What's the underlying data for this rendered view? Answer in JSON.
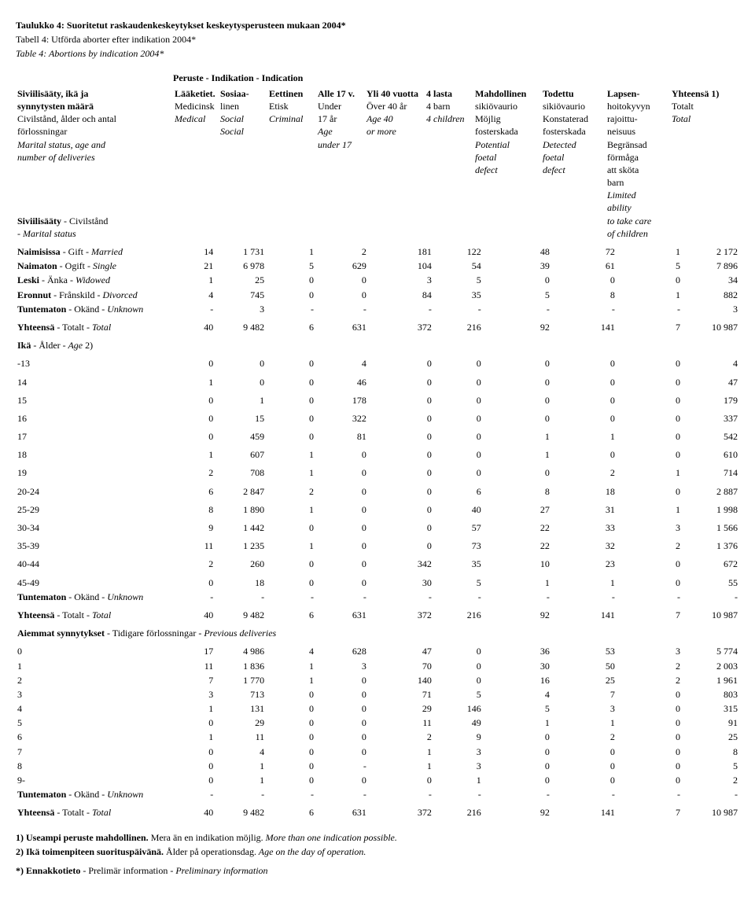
{
  "titles": {
    "fi": "Taulukko 4: Suoritetut raskaudenkeskeytykset keskeytysperusteen mukaan 2004*",
    "sv": "Tabell 4: Utförda aborter efter indikation 2004*",
    "en": "Table 4: Abortions by indication 2004*"
  },
  "indication_header": "Peruste - Indikation - Indication",
  "row_label_header": {
    "lines": [
      {
        "fi": "Siviilisääty, ikä ja",
        "sv": "",
        "en": ""
      },
      {
        "fi": "synnytysten määrä",
        "sv": "",
        "en": ""
      },
      {
        "fi": "",
        "sv": "Civilstånd, ålder och antal",
        "en": ""
      },
      {
        "fi": "",
        "sv": "förlossningar",
        "en": ""
      },
      {
        "fi": "",
        "sv": "",
        "en": "Marital status, age and"
      },
      {
        "fi": "",
        "sv": "",
        "en": "number of deliveries"
      }
    ],
    "sub": [
      {
        "fi": "Siviilisääty ",
        "sv": "- Civilstånd",
        "en": ""
      },
      {
        "fi": "",
        "sv": "",
        "en": "- Marital status"
      }
    ]
  },
  "col_headers": [
    [
      "Lääketiet.",
      "Medicinsk",
      "Medical",
      "",
      "",
      "",
      "",
      "",
      "",
      "",
      "",
      ""
    ],
    [
      "Sosiaa-",
      "linen",
      "Social",
      "Social",
      "",
      "",
      "",
      "",
      "",
      "",
      "",
      ""
    ],
    [
      "Eettinen",
      "Etisk",
      "Criminal",
      "",
      "",
      "",
      "",
      "",
      "",
      "",
      "",
      ""
    ],
    [
      "Alle 17 v.",
      "Under",
      "17 år",
      "Age",
      "under 17",
      "",
      "",
      "",
      "",
      "",
      "",
      ""
    ],
    [
      "Yli 40 vuotta",
      "Över 40 år",
      "Age 40",
      "or more",
      "",
      "",
      "",
      "",
      "",
      "",
      "",
      ""
    ],
    [
      "4 lasta",
      "4 barn",
      "4 children",
      "",
      "",
      "",
      "",
      "",
      "",
      "",
      "",
      ""
    ],
    [
      "Mahdollinen",
      "sikiövaurio",
      "Möjlig",
      "fosterskada",
      "Potential",
      "foetal",
      "defect",
      "",
      "",
      "",
      "",
      ""
    ],
    [
      "Todettu",
      "sikiövaurio",
      "Konstaterad",
      "fosterskada",
      "Detected",
      "foetal",
      "defect",
      "",
      "",
      "",
      "",
      ""
    ],
    [
      "Lapsen-",
      "hoitokyvyn",
      "rajoittu-",
      "neisuus",
      "Begränsad",
      "förmåga",
      "att sköta",
      "barn",
      "Limited",
      "ability",
      "to take care",
      "of children"
    ],
    [
      "Yhteensä 1)",
      "Totalt",
      "Total",
      "",
      "",
      "",
      "",
      "",
      "",
      "",
      "",
      ""
    ]
  ],
  "marital_rows": [
    {
      "label_fi": "Naimisissa ",
      "label_sv": "- Gift -",
      "label_en": " Married",
      "vals": [
        "14",
        "1 731",
        "1",
        "2",
        "181",
        "122",
        "48",
        "72",
        "1",
        "2 172"
      ]
    },
    {
      "label_fi": "Naimaton ",
      "label_sv": "- Ogift -",
      "label_en": " Single",
      "vals": [
        "21",
        "6 978",
        "5",
        "629",
        "104",
        "54",
        "39",
        "61",
        "5",
        "7 896"
      ]
    },
    {
      "label_fi": "Leski ",
      "label_sv": "- Änka -",
      "label_en": " Widowed",
      "vals": [
        "1",
        "25",
        "0",
        "0",
        "3",
        "5",
        "0",
        "0",
        "0",
        "34"
      ]
    },
    {
      "label_fi": "Eronnut ",
      "label_sv": "- Frånskild -",
      "label_en": " Divorced",
      "vals": [
        "4",
        "745",
        "0",
        "0",
        "84",
        "35",
        "5",
        "8",
        "1",
        "882"
      ]
    },
    {
      "label_fi": "Tuntematon ",
      "label_sv": "- Okänd -",
      "label_en": " Unknown",
      "vals": [
        "-",
        "3",
        "-",
        "-",
        "-",
        "-",
        "-",
        "-",
        "-",
        "3"
      ]
    }
  ],
  "total_row": {
    "label_fi": "Yhteensä ",
    "label_sv": "- Totalt -",
    "label_en": " Total",
    "vals": [
      "40",
      "9 482",
      "6",
      "631",
      "372",
      "216",
      "92",
      "141",
      "7",
      "10 987"
    ]
  },
  "age_section": {
    "label_fi": "Ikä ",
    "label_sv": "- Ålder -",
    "label_en": " Age",
    "sup": " 2)"
  },
  "age_rows": [
    {
      "label": "-13",
      "vals": [
        "0",
        "0",
        "0",
        "4",
        "0",
        "0",
        "0",
        "0",
        "0",
        "4"
      ]
    },
    {
      "label": "14",
      "vals": [
        "1",
        "0",
        "0",
        "46",
        "0",
        "0",
        "0",
        "0",
        "0",
        "47"
      ]
    },
    {
      "label": "15",
      "vals": [
        "0",
        "1",
        "0",
        "178",
        "0",
        "0",
        "0",
        "0",
        "0",
        "179"
      ]
    },
    {
      "label": "16",
      "vals": [
        "0",
        "15",
        "0",
        "322",
        "0",
        "0",
        "0",
        "0",
        "0",
        "337"
      ]
    },
    {
      "label": "17",
      "vals": [
        "0",
        "459",
        "0",
        "81",
        "0",
        "0",
        "1",
        "1",
        "0",
        "542"
      ]
    },
    {
      "label": "18",
      "vals": [
        "1",
        "607",
        "1",
        "0",
        "0",
        "0",
        "1",
        "0",
        "0",
        "610"
      ]
    },
    {
      "label": "19",
      "vals": [
        "2",
        "708",
        "1",
        "0",
        "0",
        "0",
        "0",
        "2",
        "1",
        "714"
      ]
    },
    {
      "label": "20-24",
      "vals": [
        "6",
        "2 847",
        "2",
        "0",
        "0",
        "6",
        "8",
        "18",
        "0",
        "2 887"
      ]
    },
    {
      "label": "25-29",
      "vals": [
        "8",
        "1 890",
        "1",
        "0",
        "0",
        "40",
        "27",
        "31",
        "1",
        "1 998"
      ]
    },
    {
      "label": "30-34",
      "vals": [
        "9",
        "1 442",
        "0",
        "0",
        "0",
        "57",
        "22",
        "33",
        "3",
        "1 566"
      ]
    },
    {
      "label": "35-39",
      "vals": [
        "11",
        "1 235",
        "1",
        "0",
        "0",
        "73",
        "22",
        "32",
        "2",
        "1 376"
      ]
    },
    {
      "label": "40-44",
      "vals": [
        "2",
        "260",
        "0",
        "0",
        "342",
        "35",
        "10",
        "23",
        "0",
        "672"
      ]
    },
    {
      "label": "45-49",
      "vals": [
        "0",
        "18",
        "0",
        "0",
        "30",
        "5",
        "1",
        "1",
        "0",
        "55"
      ]
    }
  ],
  "unknown_row": {
    "label_fi": "Tuntematon ",
    "label_sv": "- Okänd -",
    "label_en": " Unknown",
    "vals": [
      "-",
      "-",
      "-",
      "-",
      "-",
      "-",
      "-",
      "-",
      "-",
      "-"
    ]
  },
  "prev_section": {
    "label_fi": "Aiemmat synnytykset ",
    "label_sv": "- Tidigare förlossningar -",
    "label_en": " Previous deliveries"
  },
  "prev_rows": [
    {
      "label": "0",
      "vals": [
        "17",
        "4 986",
        "4",
        "628",
        "47",
        "0",
        "36",
        "53",
        "3",
        "5 774"
      ]
    },
    {
      "label": "1",
      "vals": [
        "11",
        "1 836",
        "1",
        "3",
        "70",
        "0",
        "30",
        "50",
        "2",
        "2 003"
      ]
    },
    {
      "label": "2",
      "vals": [
        "7",
        "1 770",
        "1",
        "0",
        "140",
        "0",
        "16",
        "25",
        "2",
        "1 961"
      ]
    },
    {
      "label": "3",
      "vals": [
        "3",
        "713",
        "0",
        "0",
        "71",
        "5",
        "4",
        "7",
        "0",
        "803"
      ]
    },
    {
      "label": "4",
      "vals": [
        "1",
        "131",
        "0",
        "0",
        "29",
        "146",
        "5",
        "3",
        "0",
        "315"
      ]
    },
    {
      "label": "5",
      "vals": [
        "0",
        "29",
        "0",
        "0",
        "11",
        "49",
        "1",
        "1",
        "0",
        "91"
      ]
    },
    {
      "label": "6",
      "vals": [
        "1",
        "11",
        "0",
        "0",
        "2",
        "9",
        "0",
        "2",
        "0",
        "25"
      ]
    },
    {
      "label": "7",
      "vals": [
        "0",
        "4",
        "0",
        "0",
        "1",
        "3",
        "0",
        "0",
        "0",
        "8"
      ]
    },
    {
      "label": "8",
      "vals": [
        "0",
        "1",
        "0",
        "-",
        "1",
        "3",
        "0",
        "0",
        "0",
        "5"
      ]
    },
    {
      "label": "9-",
      "vals": [
        "0",
        "1",
        "0",
        "0",
        "0",
        "1",
        "0",
        "0",
        "0",
        "2"
      ]
    }
  ],
  "footnotes": {
    "n1_fi": "1) Useampi peruste mahdollinen.",
    "n1_sv": " Mera än en indikation möjlig.",
    "n1_en": " More than one indication possible.",
    "n2_fi": "2) Ikä toimenpiteen suorituspäivänä.",
    "n2_sv": " Ålder på operationsdag.",
    "n2_en": " Age on the day of operation.",
    "star_fi": "*) Ennakkotieto ",
    "star_sv": "- Prelimär information -",
    "star_en": " Preliminary information"
  },
  "layout": {
    "col_widths": [
      "200px",
      "50px",
      "64px",
      "62px",
      "66px",
      "82px",
      "62px",
      "86px",
      "82px",
      "82px",
      "72px"
    ]
  }
}
